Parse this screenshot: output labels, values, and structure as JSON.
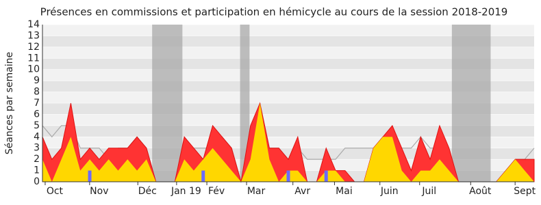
{
  "chart_data": {
    "type": "area",
    "title": "Présences en commissions et participation en hémicycle au cours de la session 2018-2019",
    "y_label": "Séances par semaine",
    "x": [
      0,
      1,
      2,
      3,
      4,
      5,
      6,
      7,
      8,
      9,
      10,
      11,
      12,
      13,
      14,
      15,
      16,
      17,
      18,
      19,
      20,
      21,
      22,
      23,
      24,
      25,
      26,
      27,
      28,
      29,
      30,
      31,
      32,
      33,
      34,
      35,
      36,
      37,
      38,
      39,
      40,
      41,
      42,
      43,
      44,
      45,
      46,
      47,
      48,
      49,
      50,
      51,
      52
    ],
    "xlim": [
      0,
      52
    ],
    "xticks": [
      {
        "value": 1.3,
        "label": "Oct"
      },
      {
        "value": 6.0,
        "label": "Nov"
      },
      {
        "value": 11.1,
        "label": "Déc"
      },
      {
        "value": 15.2,
        "label": "Jan 19"
      },
      {
        "value": 18.4,
        "label": "Fév"
      },
      {
        "value": 22.6,
        "label": "Mar"
      },
      {
        "value": 27.5,
        "label": "Avr"
      },
      {
        "value": 31.9,
        "label": "Mai"
      },
      {
        "value": 36.7,
        "label": "Juin"
      },
      {
        "value": 40.9,
        "label": "Juil"
      },
      {
        "value": 46.3,
        "label": "Août"
      },
      {
        "value": 51.0,
        "label": "Sept"
      }
    ],
    "ylim": [
      0,
      14
    ],
    "yticks": [
      0,
      1,
      2,
      3,
      4,
      5,
      6,
      7,
      8,
      9,
      10,
      11,
      12,
      13,
      14
    ],
    "grid": true,
    "shaded_ranges": [
      [
        11.6,
        14.8
      ],
      [
        20.9,
        21.9
      ],
      [
        43.3,
        47.4
      ]
    ],
    "shade_color": "#aaaaaa",
    "series": [
      {
        "kind": "area",
        "color": "#ff3333",
        "values": [
          4,
          2,
          3,
          7,
          2,
          3,
          2,
          3,
          3,
          3,
          4,
          3,
          0,
          0,
          0,
          4,
          3,
          2,
          5,
          4,
          3,
          0,
          5,
          7,
          3,
          3,
          2,
          4,
          0,
          0,
          3,
          1,
          1,
          0,
          0,
          3,
          4,
          5,
          3,
          1,
          4,
          2,
          5,
          3,
          0,
          0,
          0,
          0,
          0,
          1,
          2,
          2,
          2
        ]
      },
      {
        "kind": "area",
        "color": "#ffd700",
        "values": [
          2,
          0,
          2,
          4,
          1,
          2,
          1,
          2,
          1,
          2,
          1,
          2,
          0,
          0,
          0,
          2,
          1,
          2,
          3,
          2,
          1,
          0,
          2,
          7,
          2,
          0,
          1,
          1,
          0,
          0,
          1,
          1,
          0,
          0,
          0,
          3,
          4,
          4,
          1,
          0,
          1,
          1,
          2,
          1,
          0,
          0,
          0,
          0,
          0,
          1,
          2,
          1,
          0
        ]
      },
      {
        "kind": "line",
        "color": "#aaaaaa",
        "values": [
          5,
          4,
          5,
          5,
          3,
          3,
          3,
          2,
          3,
          3,
          4,
          3,
          0,
          0,
          0,
          3,
          3,
          3,
          3,
          4,
          3,
          0,
          3,
          7,
          3,
          3,
          2,
          3,
          2,
          2,
          2,
          2,
          3,
          3,
          3,
          3,
          4,
          4,
          3,
          3,
          4,
          3,
          3,
          2,
          0,
          0,
          0,
          0,
          0,
          1,
          2,
          2,
          3
        ]
      },
      {
        "kind": "bar",
        "color": "#6b6bff",
        "values": [
          0,
          0,
          0,
          0,
          0,
          1,
          0,
          0,
          0,
          0,
          0,
          0,
          0,
          0,
          0,
          0,
          0,
          1,
          0,
          0,
          0,
          0,
          0,
          0,
          0,
          0,
          1,
          0,
          0,
          0,
          1,
          0,
          0,
          0,
          0,
          0,
          0,
          0,
          0,
          0,
          0,
          0,
          0,
          0,
          0,
          0,
          0,
          0,
          0,
          0,
          0,
          0,
          0
        ]
      }
    ]
  }
}
